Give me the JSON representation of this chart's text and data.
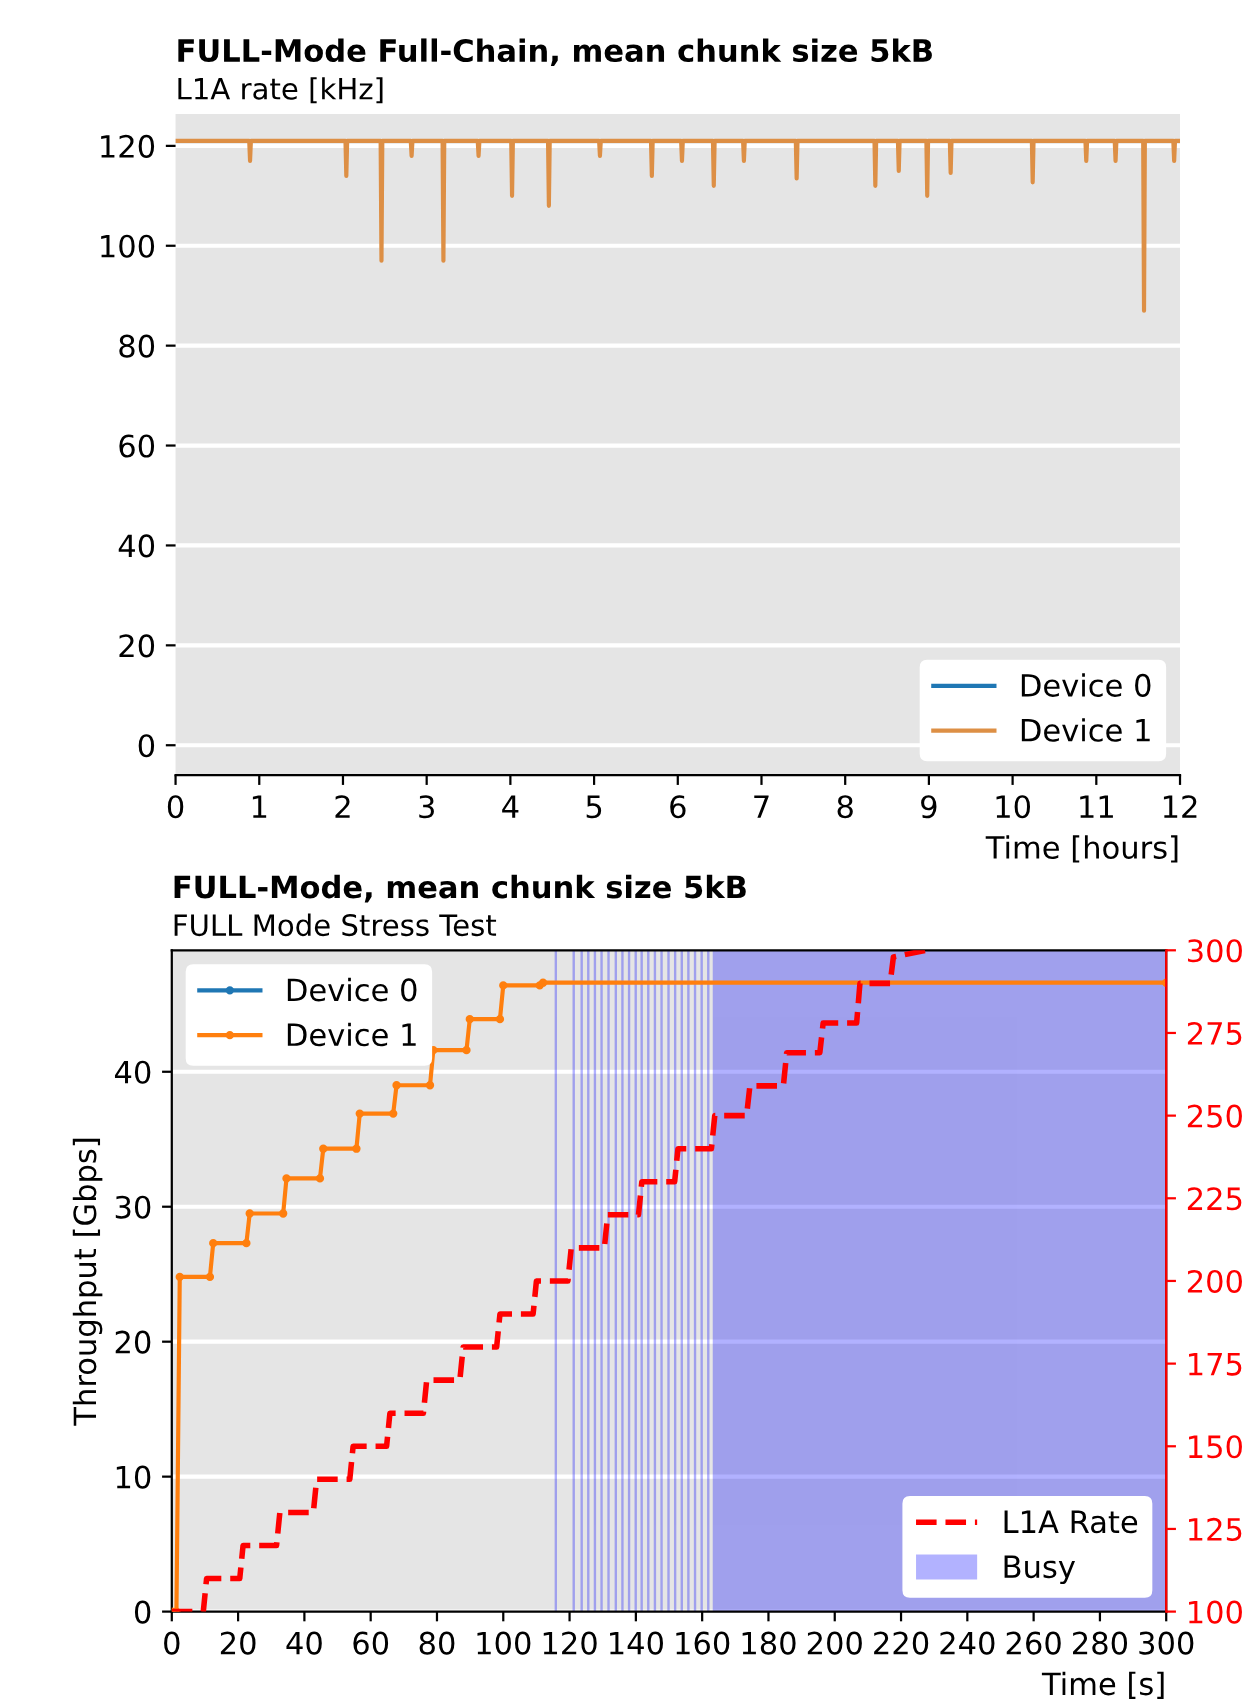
{
  "chart_data": [
    {
      "type": "line",
      "title": "FULL-Mode Full-Chain, mean chunk size 5kB",
      "subtitle": "L1A rate [kHz]",
      "xlabel": "Time [hours]",
      "xlim": [
        0,
        12
      ],
      "xticks": [
        0,
        1,
        2,
        3,
        4,
        5,
        6,
        7,
        8,
        9,
        10,
        11,
        12
      ],
      "ylim": [
        -6,
        126.4
      ],
      "yticks": [
        0,
        20,
        40,
        60,
        80,
        100,
        120
      ],
      "grid": "y",
      "legend": "bottom right",
      "series": [
        {
          "name": "Device 0",
          "color": "#1f77b4",
          "values": [
            null
          ]
        },
        {
          "name": "Device 1",
          "color": "#dd8f45",
          "x": [
            0.02,
            0.88,
            0.89,
            0.9,
            2.03,
            2.04,
            2.05,
            2.45,
            2.46,
            2.47,
            2.81,
            2.82,
            2.83,
            3.19,
            3.2,
            3.21,
            3.61,
            3.62,
            3.63,
            4.01,
            4.02,
            4.03,
            4.45,
            4.46,
            4.47,
            5.06,
            5.07,
            5.08,
            5.68,
            5.69,
            5.7,
            6.04,
            6.05,
            6.06,
            6.42,
            6.43,
            6.44,
            6.78,
            6.79,
            6.8,
            7.41,
            7.42,
            7.43,
            8.35,
            8.36,
            8.37,
            8.63,
            8.64,
            8.65,
            8.97,
            8.98,
            8.99,
            9.25,
            9.26,
            9.27,
            10.23,
            10.24,
            10.25,
            10.87,
            10.88,
            10.89,
            11.22,
            11.23,
            11.24,
            11.56,
            11.57,
            11.58,
            11.92,
            11.93,
            11.94,
            12
          ],
          "values": [
            121,
            121,
            117,
            121,
            121,
            114,
            121,
            121,
            97,
            121,
            121,
            118,
            121,
            121,
            97,
            121,
            121,
            118,
            121,
            121,
            110,
            121,
            121,
            108,
            121,
            121,
            118,
            121,
            121,
            114,
            121,
            121,
            117,
            121,
            121,
            112,
            121,
            121,
            117,
            121,
            121,
            113.5,
            121,
            121,
            112,
            121,
            121,
            115,
            121,
            121,
            110,
            121,
            121,
            114.6,
            121,
            121,
            112.7,
            121,
            121,
            117,
            121,
            121,
            117,
            121,
            121,
            87,
            121,
            121,
            117,
            121,
            121
          ]
        }
      ]
    },
    {
      "type": "line",
      "title": "FULL-Mode, mean chunk size 5kB",
      "subtitle": "FULL Mode Stress Test",
      "xlabel": "Time [s]",
      "ylabel": "Throughput [Gbps]",
      "xlim": [
        0,
        300
      ],
      "xticks": [
        0,
        20,
        40,
        60,
        80,
        100,
        120,
        140,
        160,
        180,
        200,
        220,
        240,
        260,
        280,
        300
      ],
      "ylim": [
        0,
        49
      ],
      "yticks": [
        0,
        10,
        20,
        30,
        40
      ],
      "y2lim": [
        100,
        300
      ],
      "y2ticks": [
        100,
        125,
        150,
        175,
        200,
        225,
        250,
        275,
        300
      ],
      "grid": "y",
      "legend": "top left",
      "series": [
        {
          "name": "Device 0",
          "color": "#1f77b4",
          "marker": "circle",
          "values": [
            null
          ]
        },
        {
          "name": "Device 1",
          "color": "#ff7f0e",
          "marker": "circle",
          "x": [
            0,
            1.4,
            2.4,
            11.5,
            12.5,
            22.5,
            23.5,
            33.6,
            34.6,
            44.7,
            45.7,
            55.7,
            56.7,
            66.8,
            67.8,
            77.9,
            78.9,
            88.9,
            89.9,
            99,
            100,
            111,
            112,
            300
          ],
          "values": [
            0,
            0,
            24.8,
            24.8,
            27.3,
            27.3,
            29.5,
            29.5,
            32.1,
            32.1,
            34.3,
            34.3,
            36.9,
            36.9,
            39.0,
            39.0,
            41.6,
            41.6,
            43.9,
            43.9,
            46.4,
            46.4,
            46.6,
            46.6
          ]
        },
        {
          "name": "L1A Rate",
          "color": "#ff0000",
          "axis": "y2",
          "type": "line",
          "line_style": "dashed",
          "x": [
            0,
            9.5,
            10.5,
            20.5,
            21.5,
            31.6,
            32.6,
            42.7,
            43.7,
            53.7,
            54.7,
            64.8,
            65.8,
            75.9,
            76.9,
            86.9,
            87.9,
            98,
            99,
            109,
            110,
            119.5,
            120.5,
            130.5,
            131.5,
            140.8,
            141.8,
            151.7,
            152.7,
            162.8,
            163.8,
            173.4,
            174.4,
            184.5,
            185.5,
            195.5,
            196.5,
            206.6,
            207.6,
            216.7,
            217.7,
            227.7
          ],
          "values": [
            100,
            100,
            110,
            110,
            120,
            120,
            130,
            130,
            140,
            140,
            150,
            150,
            160,
            160,
            170,
            170,
            180,
            180,
            190,
            190,
            200,
            200,
            210,
            210,
            220,
            220,
            230,
            230,
            240,
            240,
            250,
            250,
            259,
            259,
            269,
            269,
            278,
            278,
            290,
            290,
            298,
            300
          ]
        }
      ],
      "bands": [
        {
          "axis": "x",
          "from": 115.7,
          "to": 116.0,
          "color": "#0000ff"
        },
        {
          "axis": "x",
          "from": 121.1,
          "to": 121.4,
          "color": "#0000ff"
        },
        {
          "axis": "x",
          "from": 123.5,
          "to": 123.8,
          "color": "#0000ff"
        },
        {
          "axis": "x",
          "from": 125.5,
          "to": 125.8,
          "color": "#0000ff"
        },
        {
          "axis": "x",
          "from": 127.5,
          "to": 127.8,
          "color": "#0000ff"
        },
        {
          "axis": "x",
          "from": 129.5,
          "to": 129.8,
          "color": "#0000ff"
        },
        {
          "axis": "x",
          "from": 131.6,
          "to": 131.9,
          "color": "#0000ff"
        },
        {
          "axis": "x",
          "from": 133.8,
          "to": 134.1,
          "color": "#0000ff"
        },
        {
          "axis": "x",
          "from": 135.8,
          "to": 136.1,
          "color": "#0000ff"
        },
        {
          "axis": "x",
          "from": 137.8,
          "to": 138.1,
          "color": "#0000ff"
        },
        {
          "axis": "x",
          "from": 139.8,
          "to": 140.1,
          "color": "#0000ff"
        },
        {
          "axis": "x",
          "from": 141.6,
          "to": 141.9,
          "color": "#0000ff"
        },
        {
          "axis": "x",
          "from": 143.6,
          "to": 143.9,
          "color": "#0000ff"
        },
        {
          "axis": "x",
          "from": 145.6,
          "to": 145.9,
          "color": "#0000ff"
        },
        {
          "axis": "x",
          "from": 147.6,
          "to": 147.9,
          "color": "#0000ff"
        },
        {
          "axis": "x",
          "from": 149.7,
          "to": 150.0,
          "color": "#0000ff"
        },
        {
          "axis": "x",
          "from": 151.7,
          "to": 152.0,
          "color": "#0000ff"
        },
        {
          "axis": "x",
          "from": 153.7,
          "to": 154.0,
          "color": "#0000ff"
        },
        {
          "axis": "x",
          "from": 155.7,
          "to": 156.0,
          "color": "#0000ff"
        },
        {
          "axis": "x",
          "from": 157.7,
          "to": 158.0,
          "color": "#0000ff"
        },
        {
          "axis": "x",
          "from": 159.7,
          "to": 160.0,
          "color": "#0000ff"
        },
        {
          "axis": "x",
          "from": 161.7,
          "to": 162.0,
          "color": "#0000ff"
        },
        {
          "axis": "x",
          "from": 163.4,
          "to": 300,
          "label": "Busy",
          "color": "#0000ff"
        }
      ]
    }
  ]
}
